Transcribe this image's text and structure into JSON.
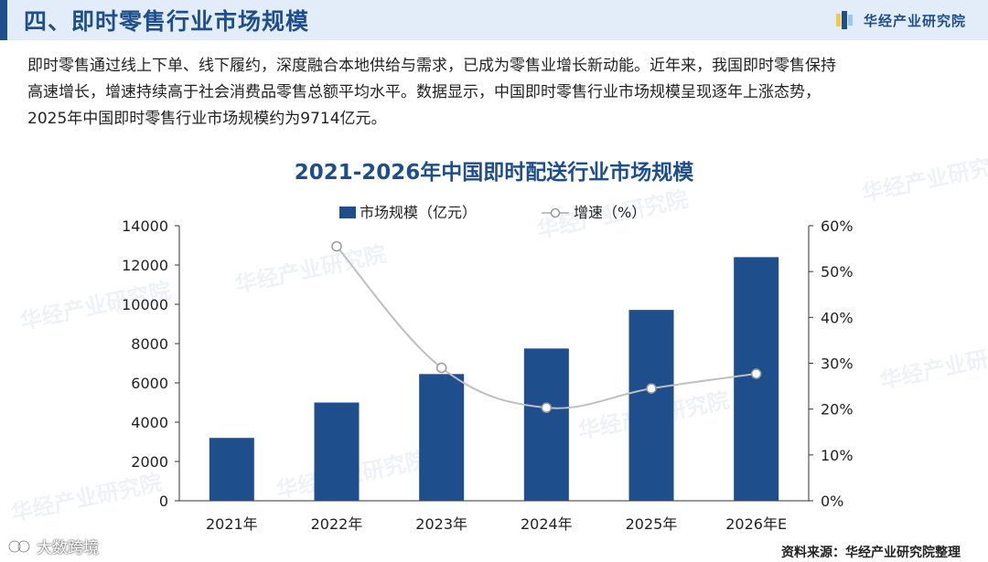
{
  "header": {
    "title": "四、即时零售行业市场规模",
    "brand": "华经产业研究院"
  },
  "intro": {
    "line1": "即时零售通过线上下单、线下履约，深度融合本地供给与需求，已成为零售业增长新动能。近年来，我国即时零售保持",
    "line2": "高速增长，增速持续高于社会消费品零售总额平均水平。数据显示，中国即时零售行业市场规模呈现逐年上涨态势，",
    "line3": "2025年中国即时零售行业市场规模约为9714亿元。"
  },
  "chart_data": {
    "type": "bar",
    "title": "2021-2026年中国即时配送行业市场规模",
    "categories": [
      "2021年",
      "2022年",
      "2023年",
      "2024年",
      "2025年",
      "2026年E"
    ],
    "series": [
      {
        "name": "市场规模（亿元）",
        "type": "bar",
        "axis": "left",
        "color": "#1f4e8c",
        "values": [
          3200,
          5000,
          6450,
          7750,
          9714,
          12400
        ]
      },
      {
        "name": "增速（%）",
        "type": "line",
        "axis": "right",
        "color": "#bfbfbf",
        "values": [
          null,
          55.5,
          29,
          20.3,
          24.5,
          27.7
        ]
      }
    ],
    "y_left": {
      "min": 0,
      "max": 14000,
      "ticks": [
        0,
        2000,
        4000,
        6000,
        8000,
        10000,
        12000,
        14000
      ],
      "tick_labels": [
        "0",
        "2000",
        "4000",
        "6000",
        "8000",
        "10000",
        "12000",
        "14000"
      ]
    },
    "y_right": {
      "min": 0,
      "max": 60,
      "ticks": [
        0,
        10,
        20,
        30,
        40,
        50,
        60
      ],
      "tick_labels": [
        "0%",
        "10%",
        "20%",
        "30%",
        "40%",
        "50%",
        "60%"
      ]
    },
    "legend": "top-center",
    "grid": false
  },
  "watermark": "华经产业研究院",
  "footer": {
    "source": "资料来源：华经产业研究院整理",
    "platform": "大数跨境"
  }
}
